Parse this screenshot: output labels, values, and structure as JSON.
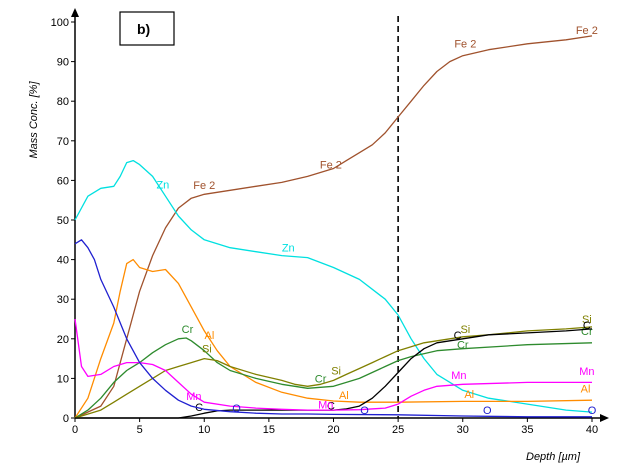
{
  "chart_data": {
    "type": "line",
    "panel_label": "b)",
    "xlabel": "Depth [µm]",
    "ylabel": "Mass Conc. [%]",
    "xlim": [
      0,
      40
    ],
    "ylim": [
      0,
      100
    ],
    "xticks": [
      0,
      5,
      10,
      15,
      20,
      25,
      30,
      35,
      40
    ],
    "yticks": [
      0,
      10,
      20,
      30,
      40,
      50,
      60,
      70,
      80,
      90,
      100
    ],
    "grid": false,
    "marker_line": {
      "x": 25,
      "style": "dashed",
      "color": "#000000"
    },
    "series": [
      {
        "name": "Fe 2",
        "color": "#a0522d",
        "points": [
          [
            0,
            0
          ],
          [
            2,
            3
          ],
          [
            3,
            8
          ],
          [
            4,
            20
          ],
          [
            5,
            32
          ],
          [
            6,
            41
          ],
          [
            7,
            48
          ],
          [
            8,
            53
          ],
          [
            9,
            55.5
          ],
          [
            10,
            56.5
          ],
          [
            12,
            57.5
          ],
          [
            14,
            58.5
          ],
          [
            16,
            59.5
          ],
          [
            18,
            61
          ],
          [
            20,
            63
          ],
          [
            21,
            65
          ],
          [
            22,
            67
          ],
          [
            23,
            69
          ],
          [
            24,
            72
          ],
          [
            25,
            76
          ],
          [
            26,
            80
          ],
          [
            27,
            84
          ],
          [
            28,
            87.5
          ],
          [
            29,
            90
          ],
          [
            30,
            91.5
          ],
          [
            32,
            93
          ],
          [
            35,
            94.5
          ],
          [
            38,
            95.5
          ],
          [
            40,
            96.5
          ]
        ],
        "labels": [
          [
            10,
            57.8
          ],
          [
            19.8,
            63
          ],
          [
            30.2,
            93.5
          ],
          [
            39.6,
            97
          ]
        ]
      },
      {
        "name": "Zn",
        "color": "#00e0e0",
        "points": [
          [
            0,
            50
          ],
          [
            1,
            56
          ],
          [
            2,
            58
          ],
          [
            3,
            58.5
          ],
          [
            3.5,
            61
          ],
          [
            4,
            64.5
          ],
          [
            4.5,
            65
          ],
          [
            5,
            64
          ],
          [
            6,
            61
          ],
          [
            7,
            56
          ],
          [
            8,
            51
          ],
          [
            9,
            47.5
          ],
          [
            10,
            45
          ],
          [
            12,
            43
          ],
          [
            14,
            42
          ],
          [
            16,
            41
          ],
          [
            18,
            40.5
          ],
          [
            20,
            38
          ],
          [
            22,
            35
          ],
          [
            24,
            30
          ],
          [
            25,
            26
          ],
          [
            26,
            20
          ],
          [
            27,
            15
          ],
          [
            28,
            11
          ],
          [
            30,
            7
          ],
          [
            32,
            5
          ],
          [
            35,
            3.5
          ],
          [
            38,
            2
          ],
          [
            40,
            1.5
          ]
        ],
        "labels": [
          [
            6.8,
            58
          ],
          [
            16.5,
            42
          ]
        ]
      },
      {
        "name": "Al",
        "color": "#ff8c00",
        "points": [
          [
            0,
            0
          ],
          [
            1,
            5
          ],
          [
            2,
            15
          ],
          [
            3,
            24
          ],
          [
            3.5,
            32
          ],
          [
            4,
            39
          ],
          [
            4.5,
            40
          ],
          [
            5,
            38
          ],
          [
            6,
            37
          ],
          [
            7,
            37.5
          ],
          [
            8,
            34
          ],
          [
            9,
            28
          ],
          [
            10,
            22
          ],
          [
            11,
            17
          ],
          [
            12,
            13
          ],
          [
            14,
            9
          ],
          [
            16,
            6.5
          ],
          [
            18,
            5
          ],
          [
            20,
            4.3
          ],
          [
            22,
            4
          ],
          [
            25,
            4
          ],
          [
            30,
            4.2
          ],
          [
            35,
            4.2
          ],
          [
            40,
            4.5
          ]
        ],
        "labels": [
          [
            10.4,
            20
          ],
          [
            20.8,
            4.8
          ],
          [
            30.5,
            5
          ],
          [
            39.5,
            6.5
          ]
        ]
      },
      {
        "name": "Cr",
        "color": "#2e8b2e",
        "points": [
          [
            0,
            0
          ],
          [
            1,
            2
          ],
          [
            2,
            5
          ],
          [
            3,
            9
          ],
          [
            4,
            12
          ],
          [
            5,
            14
          ],
          [
            6,
            16.5
          ],
          [
            7,
            18.5
          ],
          [
            8,
            20
          ],
          [
            8.6,
            20.2
          ],
          [
            9,
            19.5
          ],
          [
            10,
            17
          ],
          [
            11,
            14
          ],
          [
            12,
            12
          ],
          [
            14,
            10
          ],
          [
            16,
            8.5
          ],
          [
            18,
            7.5
          ],
          [
            20,
            8
          ],
          [
            22,
            10
          ],
          [
            24,
            13
          ],
          [
            25,
            14.5
          ],
          [
            26,
            15.5
          ],
          [
            28,
            17
          ],
          [
            30,
            17.5
          ],
          [
            35,
            18.5
          ],
          [
            40,
            19
          ]
        ],
        "labels": [
          [
            8.7,
            21.5
          ],
          [
            19,
            9
          ],
          [
            30,
            17.5
          ],
          [
            39.6,
            21
          ]
        ]
      },
      {
        "name": "Si",
        "color": "#808000",
        "points": [
          [
            0,
            0
          ],
          [
            2,
            2
          ],
          [
            3,
            4
          ],
          [
            4,
            6
          ],
          [
            5,
            8
          ],
          [
            6,
            10
          ],
          [
            7,
            12
          ],
          [
            8,
            13
          ],
          [
            9,
            14
          ],
          [
            10,
            15
          ],
          [
            11,
            14.5
          ],
          [
            12,
            13
          ],
          [
            14,
            11
          ],
          [
            16,
            9.5
          ],
          [
            17,
            8.5
          ],
          [
            18,
            8
          ],
          [
            19,
            8.5
          ],
          [
            20,
            9.5
          ],
          [
            21,
            11
          ],
          [
            22,
            12.5
          ],
          [
            23,
            14
          ],
          [
            24,
            15.5
          ],
          [
            25,
            17
          ],
          [
            26,
            18
          ],
          [
            27,
            19
          ],
          [
            28,
            19.5
          ],
          [
            30,
            20.5
          ],
          [
            32,
            21
          ],
          [
            35,
            22
          ],
          [
            38,
            22.5
          ],
          [
            40,
            23
          ]
        ],
        "labels": [
          [
            10.2,
            16.5
          ],
          [
            20.2,
            11
          ],
          [
            30.2,
            21.5
          ],
          [
            39.6,
            24
          ]
        ]
      },
      {
        "name": "C",
        "color": "#000000",
        "points": [
          [
            0,
            0
          ],
          [
            8,
            0
          ],
          [
            9,
            0.5
          ],
          [
            10,
            1.2
          ],
          [
            11,
            1.8
          ],
          [
            12,
            2
          ],
          [
            14,
            2
          ],
          [
            16,
            2
          ],
          [
            18,
            2
          ],
          [
            20,
            2
          ],
          [
            21,
            2.3
          ],
          [
            22,
            3
          ],
          [
            23,
            5
          ],
          [
            24,
            8
          ],
          [
            25,
            11.5
          ],
          [
            26,
            15
          ],
          [
            27,
            17.5
          ],
          [
            28,
            19
          ],
          [
            30,
            20
          ],
          [
            32,
            21
          ],
          [
            35,
            21.5
          ],
          [
            38,
            22
          ],
          [
            40,
            22.5
          ]
        ],
        "labels": [
          [
            9.6,
            1.8
          ],
          [
            19.8,
            2.2
          ],
          [
            29.6,
            20
          ],
          [
            39.6,
            22.5
          ]
        ]
      },
      {
        "name": "Mn",
        "color": "#ff00ff",
        "points": [
          [
            0,
            25
          ],
          [
            0.5,
            13
          ],
          [
            1,
            10.5
          ],
          [
            2,
            11
          ],
          [
            3,
            13
          ],
          [
            4,
            14
          ],
          [
            5,
            14
          ],
          [
            6,
            13.5
          ],
          [
            7,
            12
          ],
          [
            8,
            9
          ],
          [
            9,
            6
          ],
          [
            10,
            4
          ],
          [
            12,
            3
          ],
          [
            14,
            2.5
          ],
          [
            16,
            2.2
          ],
          [
            18,
            2
          ],
          [
            20,
            2
          ],
          [
            22,
            2.1
          ],
          [
            24,
            2.5
          ],
          [
            25,
            3.5
          ],
          [
            26,
            5.5
          ],
          [
            27,
            7
          ],
          [
            28,
            8
          ],
          [
            30,
            8.5
          ],
          [
            35,
            9
          ],
          [
            40,
            9
          ]
        ],
        "labels": [
          [
            9.2,
            4.5
          ],
          [
            19.4,
            2.4
          ],
          [
            29.7,
            9.8
          ],
          [
            39.6,
            10.8
          ]
        ]
      },
      {
        "name": "O",
        "color": "#2020d0",
        "points": [
          [
            0,
            44
          ],
          [
            0.5,
            45
          ],
          [
            1,
            43
          ],
          [
            1.5,
            40
          ],
          [
            2,
            35
          ],
          [
            3,
            28
          ],
          [
            4,
            20
          ],
          [
            5,
            14
          ],
          [
            6,
            10
          ],
          [
            7,
            7
          ],
          [
            8,
            4.5
          ],
          [
            9,
            3
          ],
          [
            10,
            2.2
          ],
          [
            12,
            1.6
          ],
          [
            14,
            1.2
          ],
          [
            16,
            1
          ],
          [
            18,
            1
          ],
          [
            20,
            0.9
          ],
          [
            25,
            0.8
          ],
          [
            30,
            0.5
          ],
          [
            35,
            0.3
          ],
          [
            40,
            0.3
          ]
        ],
        "labels": [
          [
            12.5,
            1.5
          ],
          [
            22.4,
            1
          ],
          [
            31.9,
            1
          ],
          [
            40,
            1
          ]
        ]
      }
    ]
  }
}
